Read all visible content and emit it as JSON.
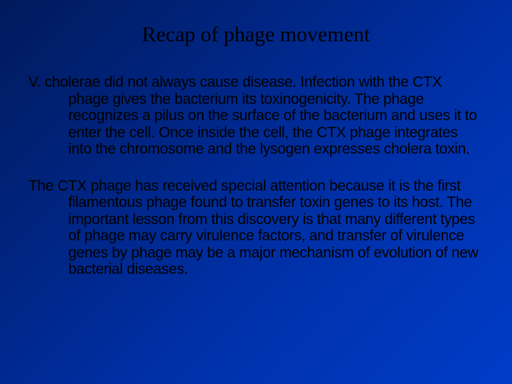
{
  "slide": {
    "background_gradient": [
      "#001a5c",
      "#002480",
      "#0030a8",
      "#003cc8"
    ],
    "text_color": "#000000",
    "title": "Recap of phage movement",
    "title_fontsize": 30,
    "title_font": "Georgia",
    "body_fontsize": 21,
    "body_font": "Verdana",
    "paragraphs": [
      "V. cholerae did not always cause disease. Infection with the CTX phage gives the bacterium its toxinogenicity. The phage recognizes a pilus on the surface of the bacterium and uses it to enter the cell. Once inside the cell, the CTX phage integrates into the chromosome and the lysogen expresses cholera toxin.",
      "The CTX phage has received special attention because it is the first filamentous phage found to transfer toxin genes to its host. The important lesson from this discovery is that many different types of phage may carry virulence factors, and transfer of virulence genes by phage may be a major mechanism of evolution of new bacterial diseases."
    ]
  }
}
